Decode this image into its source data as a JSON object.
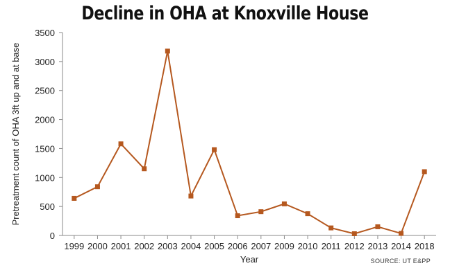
{
  "chart_data": {
    "type": "line",
    "title": "Decline in OHA at Knoxville House",
    "xlabel": "Year",
    "ylabel": "Pretreatment count of OHA 3ft up and at base",
    "source": "SOURCE: UT E&PP",
    "categories": [
      "1999",
      "2000",
      "2001",
      "2002",
      "2003",
      "2004",
      "2005",
      "2006",
      "2007",
      "2009",
      "2010",
      "2011",
      "2012",
      "2013",
      "2014",
      "2018"
    ],
    "series": [
      {
        "values": [
          640,
          840,
          1580,
          1150,
          3180,
          680,
          1480,
          340,
          410,
          545,
          375,
          130,
          30,
          150,
          35,
          1100
        ],
        "color": "#b5581f"
      }
    ],
    "ylim": [
      0,
      3500
    ],
    "yticks": [
      0,
      500,
      1000,
      1500,
      2000,
      2500,
      3000,
      3500
    ],
    "grid": false
  }
}
